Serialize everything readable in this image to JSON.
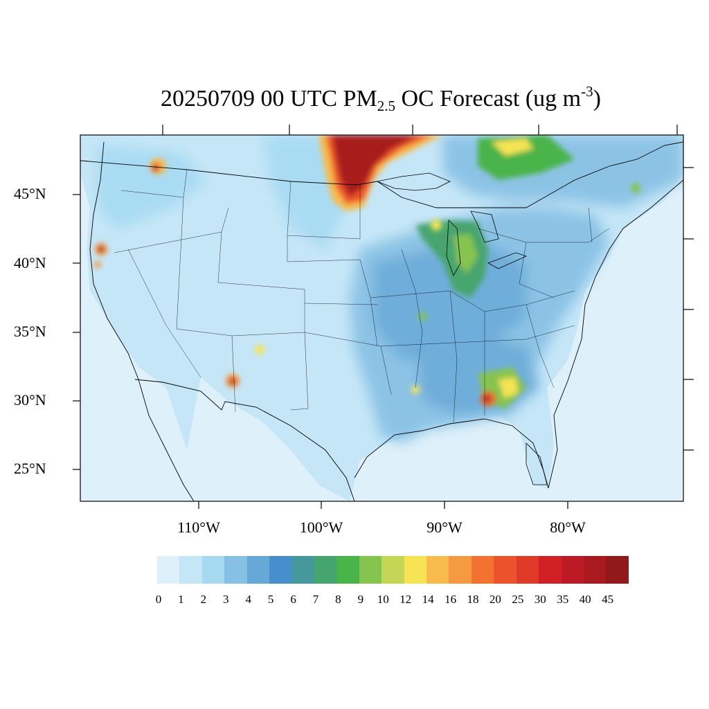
{
  "title": {
    "main": "20250709 00 UTC PM",
    "subscript": "2.5",
    "after": " OC Forecast (ug m",
    "superscript": "-3",
    "close": ")"
  },
  "lat_labels": [
    "45°N",
    "40°N",
    "35°N",
    "30°N",
    "25°N"
  ],
  "lon_labels": [
    "110°W",
    "100°W",
    "90°W",
    "80°W"
  ],
  "colorbar": {
    "levels": [
      "0",
      "1",
      "2",
      "3",
      "4",
      "5",
      "6",
      "7",
      "8",
      "9",
      "10",
      "12",
      "14",
      "16",
      "18",
      "20",
      "25",
      "30",
      "35",
      "40",
      "45"
    ],
    "colors": [
      "#def1fa",
      "#c5e6f7",
      "#a6daf3",
      "#86c0e4",
      "#66a8d7",
      "#478fcc",
      "#45999d",
      "#46a56e",
      "#49b449",
      "#86c450",
      "#c4d656",
      "#f6e454",
      "#f7bc4c",
      "#f59a40",
      "#f37231",
      "#ec532c",
      "#df3a28",
      "#d22027",
      "#bc1b25",
      "#a81a1e",
      "#911919"
    ]
  },
  "colors": {
    "ocean": "#def1fa",
    "land_low": "#c5e6f7",
    "frame": "#000000"
  }
}
